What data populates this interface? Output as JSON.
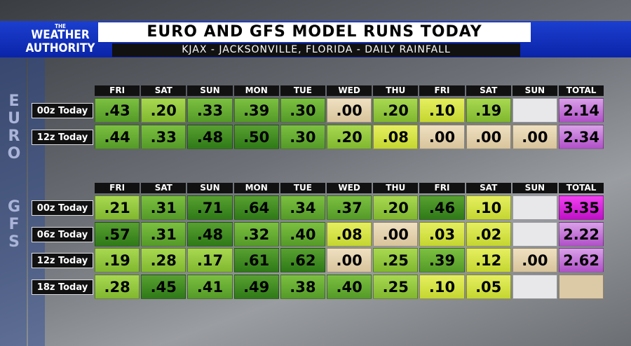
{
  "header": {
    "logo": [
      "THE",
      "WEATHER",
      "AUTHORITY"
    ],
    "title": "EURO AND GFS MODEL RUNS TODAY",
    "subtitle": "KJAX - JACKSONVILLE, FLORIDA - DAILY RAINFALL"
  },
  "sections": [
    {
      "label": "EURO",
      "columns": [
        "FRI",
        "SAT",
        "SUN",
        "MON",
        "TUE",
        "WED",
        "THU",
        "FRI",
        "SAT",
        "SUN",
        "TOTAL"
      ],
      "rows": [
        {
          "label": "00z Today",
          "cells": [
            ".43",
            ".20",
            ".33",
            ".39",
            ".30",
            ".00",
            ".20",
            ".10",
            ".19",
            null,
            "2.14"
          ]
        },
        {
          "label": "12z Today",
          "cells": [
            ".44",
            ".33",
            ".48",
            ".50",
            ".30",
            ".20",
            ".08",
            ".00",
            ".00",
            ".00",
            "2.34"
          ]
        }
      ]
    },
    {
      "label": "GFS",
      "columns": [
        "FRI",
        "SAT",
        "SUN",
        "MON",
        "TUE",
        "WED",
        "THU",
        "FRI",
        "SAT",
        "SUN",
        "TOTAL"
      ],
      "rows": [
        {
          "label": "00z Today",
          "cells": [
            ".21",
            ".31",
            ".71",
            ".64",
            ".34",
            ".37",
            ".20",
            ".46",
            ".10",
            null,
            "3.35"
          ]
        },
        {
          "label": "06z Today",
          "cells": [
            ".57",
            ".31",
            ".48",
            ".32",
            ".40",
            ".08",
            ".00",
            ".03",
            ".02",
            null,
            "2.22"
          ]
        },
        {
          "label": "12z Today",
          "cells": [
            ".19",
            ".28",
            ".17",
            ".61",
            ".62",
            ".00",
            ".25",
            ".39",
            ".12",
            ".00",
            "2.62"
          ]
        },
        {
          "label": "18z Today",
          "cells": [
            ".28",
            ".45",
            ".41",
            ".49",
            ".38",
            ".40",
            ".25",
            ".10",
            ".05",
            null,
            null
          ]
        }
      ]
    }
  ]
}
